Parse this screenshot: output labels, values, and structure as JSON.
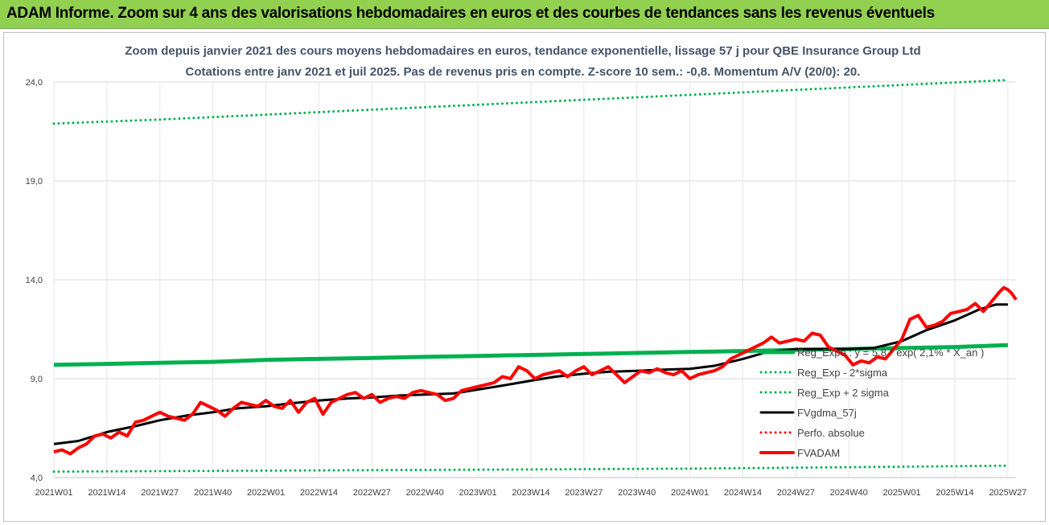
{
  "banner": {
    "title": "ADAM Informe. Zoom sur 4 ans des valorisations hebdomadaires en euros et des courbes de tendances sans les revenus éventuels"
  },
  "chart_data": {
    "type": "line",
    "title": "Zoom depuis janvier 2021 des cours moyens hebdomadaires en euros, tendance exponentielle, lissage 57 j pour QBE Insurance Group Ltd",
    "subtitle": "Cotations entre janv 2021 et juil 2025. Pas de revenus pris en compte. Z-score 10 sem.: -0,8. Momentum A/V (20/0): 20.",
    "xlabel": "",
    "ylabel": "",
    "ylim": [
      4.0,
      24.0
    ],
    "yticks": [
      "4,0",
      "9,0",
      "14,0",
      "19,0",
      "24,0"
    ],
    "ytick_values": [
      4,
      9,
      14,
      19,
      24
    ],
    "xticks": [
      "2021W01",
      "2021W14",
      "2021W27",
      "2021W40",
      "2022W01",
      "2022W14",
      "2022W27",
      "2022W40",
      "2023W01",
      "2023W14",
      "2023W27",
      "2023W40",
      "2024W01",
      "2024W14",
      "2024W27",
      "2024W40",
      "2025W01",
      "2025W14",
      "2025W27"
    ],
    "grid": true,
    "legend_position": "right",
    "series": [
      {
        "name": "Reg_Expo : y = 5,8 * exp( 2,1% * X_an )",
        "style": "solid",
        "color": "#00b050",
        "points": [
          [
            0,
            9.7
          ],
          [
            13,
            9.75
          ],
          [
            26,
            9.8
          ],
          [
            39,
            9.85
          ],
          [
            52,
            9.95
          ],
          [
            65,
            10.0
          ],
          [
            78,
            10.05
          ],
          [
            91,
            10.1
          ],
          [
            104,
            10.15
          ],
          [
            117,
            10.2
          ],
          [
            130,
            10.25
          ],
          [
            143,
            10.3
          ],
          [
            156,
            10.35
          ],
          [
            169,
            10.4
          ],
          [
            182,
            10.45
          ],
          [
            195,
            10.5
          ],
          [
            208,
            10.55
          ],
          [
            221,
            10.6
          ],
          [
            234,
            10.7
          ]
        ]
      },
      {
        "name": "Reg_Exp - 2*sigma",
        "style": "dotted",
        "color": "#00b050",
        "points": [
          [
            0,
            4.3
          ],
          [
            52,
            4.35
          ],
          [
            104,
            4.4
          ],
          [
            156,
            4.45
          ],
          [
            208,
            4.55
          ],
          [
            234,
            4.6
          ]
        ]
      },
      {
        "name": "Reg_Exp + 2 sigma",
        "style": "dotted",
        "color": "#00b050",
        "points": [
          [
            0,
            21.9
          ],
          [
            26,
            22.1
          ],
          [
            52,
            22.35
          ],
          [
            78,
            22.6
          ],
          [
            104,
            22.85
          ],
          [
            130,
            23.1
          ],
          [
            156,
            23.35
          ],
          [
            182,
            23.6
          ],
          [
            208,
            23.85
          ],
          [
            234,
            24.1
          ]
        ]
      },
      {
        "name": "FVgdma_57j",
        "style": "solid",
        "color": "#000000",
        "points": [
          [
            0,
            5.7
          ],
          [
            6,
            5.85
          ],
          [
            13,
            6.3
          ],
          [
            20,
            6.6
          ],
          [
            26,
            6.9
          ],
          [
            33,
            7.15
          ],
          [
            39,
            7.3
          ],
          [
            45,
            7.5
          ],
          [
            52,
            7.6
          ],
          [
            58,
            7.75
          ],
          [
            65,
            7.9
          ],
          [
            72,
            8.0
          ],
          [
            78,
            8.05
          ],
          [
            85,
            8.15
          ],
          [
            91,
            8.2
          ],
          [
            98,
            8.25
          ],
          [
            104,
            8.45
          ],
          [
            110,
            8.65
          ],
          [
            117,
            8.9
          ],
          [
            123,
            9.1
          ],
          [
            130,
            9.25
          ],
          [
            136,
            9.35
          ],
          [
            143,
            9.4
          ],
          [
            149,
            9.45
          ],
          [
            156,
            9.5
          ],
          [
            162,
            9.65
          ],
          [
            169,
            10.0
          ],
          [
            175,
            10.35
          ],
          [
            182,
            10.5
          ],
          [
            188,
            10.5
          ],
          [
            195,
            10.5
          ],
          [
            201,
            10.55
          ],
          [
            208,
            10.9
          ],
          [
            214,
            11.45
          ],
          [
            221,
            11.95
          ],
          [
            227,
            12.5
          ],
          [
            231,
            12.75
          ],
          [
            234,
            12.75
          ]
        ]
      },
      {
        "name": "Perfo. absolue",
        "style": "dotted",
        "color": "#ff0000",
        "points": []
      },
      {
        "name": "FVADAM",
        "style": "solid",
        "color": "#ff0000",
        "points": [
          [
            0,
            5.3
          ],
          [
            2,
            5.4
          ],
          [
            4,
            5.2
          ],
          [
            6,
            5.5
          ],
          [
            8,
            5.7
          ],
          [
            10,
            6.1
          ],
          [
            12,
            6.2
          ],
          [
            14,
            6.0
          ],
          [
            16,
            6.3
          ],
          [
            18,
            6.1
          ],
          [
            20,
            6.8
          ],
          [
            22,
            6.9
          ],
          [
            24,
            7.1
          ],
          [
            26,
            7.3
          ],
          [
            28,
            7.1
          ],
          [
            30,
            7.0
          ],
          [
            32,
            6.9
          ],
          [
            34,
            7.2
          ],
          [
            36,
            7.8
          ],
          [
            38,
            7.6
          ],
          [
            40,
            7.4
          ],
          [
            42,
            7.1
          ],
          [
            44,
            7.5
          ],
          [
            46,
            7.8
          ],
          [
            48,
            7.7
          ],
          [
            50,
            7.6
          ],
          [
            52,
            7.9
          ],
          [
            54,
            7.6
          ],
          [
            56,
            7.5
          ],
          [
            58,
            7.9
          ],
          [
            60,
            7.3
          ],
          [
            62,
            7.8
          ],
          [
            64,
            8.0
          ],
          [
            66,
            7.2
          ],
          [
            68,
            7.8
          ],
          [
            70,
            8.0
          ],
          [
            72,
            8.2
          ],
          [
            74,
            8.3
          ],
          [
            76,
            8.0
          ],
          [
            78,
            8.2
          ],
          [
            80,
            7.8
          ],
          [
            82,
            8.0
          ],
          [
            84,
            8.1
          ],
          [
            86,
            8.0
          ],
          [
            88,
            8.3
          ],
          [
            90,
            8.4
          ],
          [
            92,
            8.3
          ],
          [
            94,
            8.2
          ],
          [
            96,
            7.9
          ],
          [
            98,
            8.0
          ],
          [
            100,
            8.4
          ],
          [
            102,
            8.5
          ],
          [
            104,
            8.6
          ],
          [
            106,
            8.7
          ],
          [
            108,
            8.8
          ],
          [
            110,
            9.1
          ],
          [
            112,
            9.0
          ],
          [
            114,
            9.6
          ],
          [
            116,
            9.4
          ],
          [
            118,
            9.0
          ],
          [
            120,
            9.2
          ],
          [
            122,
            9.3
          ],
          [
            124,
            9.4
          ],
          [
            126,
            9.1
          ],
          [
            128,
            9.4
          ],
          [
            130,
            9.6
          ],
          [
            132,
            9.2
          ],
          [
            134,
            9.4
          ],
          [
            136,
            9.6
          ],
          [
            138,
            9.2
          ],
          [
            140,
            8.8
          ],
          [
            142,
            9.1
          ],
          [
            144,
            9.4
          ],
          [
            146,
            9.3
          ],
          [
            148,
            9.5
          ],
          [
            150,
            9.3
          ],
          [
            152,
            9.2
          ],
          [
            154,
            9.4
          ],
          [
            156,
            9.0
          ],
          [
            158,
            9.2
          ],
          [
            160,
            9.3
          ],
          [
            162,
            9.4
          ],
          [
            164,
            9.6
          ],
          [
            166,
            10.0
          ],
          [
            168,
            10.2
          ],
          [
            170,
            10.4
          ],
          [
            172,
            10.6
          ],
          [
            174,
            10.8
          ],
          [
            176,
            11.1
          ],
          [
            178,
            10.8
          ],
          [
            180,
            10.9
          ],
          [
            182,
            11.0
          ],
          [
            184,
            10.9
          ],
          [
            186,
            11.3
          ],
          [
            188,
            11.2
          ],
          [
            190,
            10.6
          ],
          [
            192,
            10.4
          ],
          [
            194,
            10.2
          ],
          [
            196,
            9.7
          ],
          [
            198,
            9.9
          ],
          [
            200,
            9.8
          ],
          [
            202,
            10.1
          ],
          [
            204,
            10.0
          ],
          [
            206,
            10.5
          ],
          [
            208,
            11.0
          ],
          [
            210,
            12.0
          ],
          [
            212,
            12.2
          ],
          [
            214,
            11.6
          ],
          [
            216,
            11.7
          ],
          [
            218,
            11.9
          ],
          [
            220,
            12.3
          ],
          [
            222,
            12.4
          ],
          [
            224,
            12.5
          ],
          [
            226,
            12.8
          ],
          [
            228,
            12.4
          ],
          [
            230,
            12.9
          ],
          [
            232,
            13.4
          ],
          [
            233,
            13.6
          ],
          [
            234,
            13.5
          ],
          [
            235,
            13.3
          ],
          [
            236,
            13.0
          ]
        ]
      }
    ]
  }
}
